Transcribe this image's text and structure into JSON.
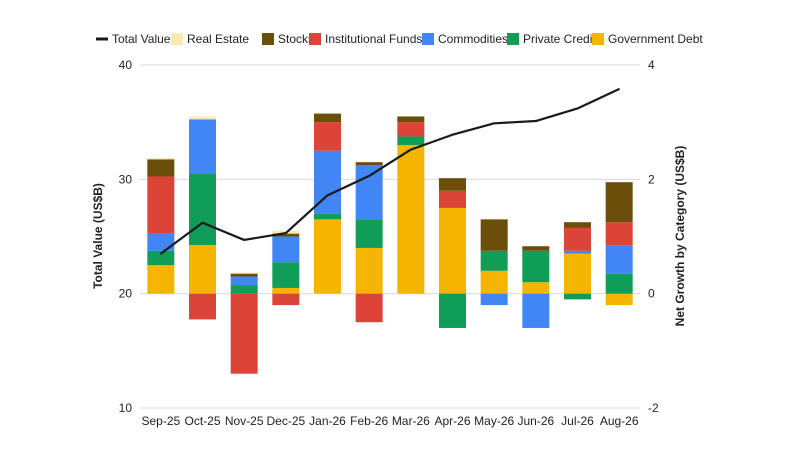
{
  "chart_data": {
    "type": "bar",
    "subtype": "stacked bar with line overlay",
    "categories": [
      "Sep-25",
      "Oct-25",
      "Nov-25",
      "Dec-25",
      "Jan-26",
      "Feb-26",
      "Mar-26",
      "Apr-26",
      "May-26",
      "Jun-26",
      "Jul-26",
      "Aug-26"
    ],
    "y_left": {
      "label": "Total Value (US$B)",
      "range": [
        10,
        40
      ],
      "ticks": [
        "10",
        "20",
        "30",
        "40"
      ]
    },
    "y_right": {
      "label": "Net Growth by Category (US$B)",
      "range": [
        -2,
        4
      ],
      "ticks": [
        "-2",
        "0",
        "2",
        "4"
      ]
    },
    "grid": true,
    "legend_position": "top",
    "line": {
      "name": "Total Value",
      "color": "#1a1a1a",
      "axis": "left",
      "values": [
        23.5,
        26.2,
        24.7,
        25.3,
        28.6,
        30.3,
        32.6,
        33.9,
        34.9,
        35.1,
        36.2,
        37.9
      ]
    },
    "series": [
      {
        "name": "Government Debt",
        "color": "#F4B400",
        "values": [
          0.5,
          0.85,
          0.0,
          0.1,
          1.3,
          0.8,
          2.6,
          1.5,
          0.4,
          0.2,
          0.7,
          -0.2
        ]
      },
      {
        "name": "Private Credit",
        "color": "#0F9D58",
        "values": [
          0.25,
          1.25,
          0.15,
          0.45,
          0.1,
          0.5,
          0.15,
          -0.6,
          0.35,
          0.55,
          -0.1,
          0.35
        ]
      },
      {
        "name": "Commodities",
        "color": "#4285F4",
        "values": [
          0.3,
          0.95,
          0.15,
          0.45,
          1.1,
          0.95,
          0.0,
          0.0,
          -0.2,
          -0.6,
          0.05,
          0.5
        ]
      },
      {
        "name": "Institutional Funds",
        "color": "#DB4437",
        "values": [
          1.0,
          -0.45,
          -1.4,
          -0.2,
          0.5,
          -0.5,
          0.25,
          0.3,
          0.0,
          0.0,
          0.4,
          0.4
        ]
      },
      {
        "name": "Stocks",
        "color": "#6B4E09",
        "values": [
          0.3,
          0.0,
          0.05,
          0.05,
          0.15,
          0.05,
          0.1,
          0.22,
          0.55,
          0.08,
          0.1,
          0.7
        ]
      },
      {
        "name": "Real Estate",
        "color": "#FCE8B2",
        "values": [
          0.02,
          0.05,
          0.02,
          0.05,
          0.0,
          0.0,
          0.0,
          0.0,
          0.0,
          0.0,
          0.0,
          0.0
        ]
      }
    ],
    "legend_order": [
      "Total Value",
      "Real Estate",
      "Stocks",
      "Institutional Funds",
      "Commodities",
      "Private Credit",
      "Government Debt"
    ]
  }
}
